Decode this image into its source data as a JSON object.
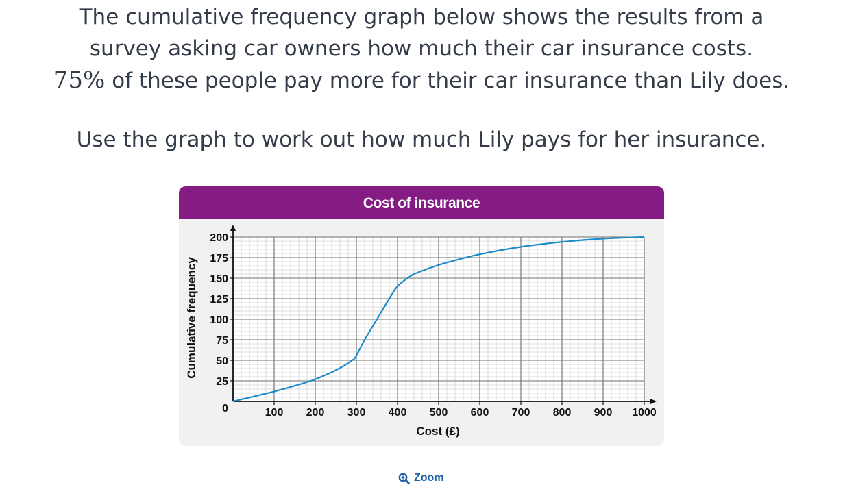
{
  "question": {
    "line1": "The cumulative frequency graph below shows the results from a",
    "line2": "survey asking car owners how much their car insurance costs.",
    "line3_pct": "75%",
    "line3_rest": " of these people pay more for their car insurance than Lily does.",
    "instruction": "Use the graph to work out how much Lily pays for her insurance."
  },
  "zoom_label": "Zoom",
  "colors": {
    "header": "#841c84",
    "curve": "#1a8bc9",
    "card": "#f1f1f1"
  },
  "chart_data": {
    "type": "line",
    "title": "Cost of insurance",
    "xlabel": "Cost (£)",
    "ylabel": "Cumulative frequency",
    "xlim": [
      0,
      1000
    ],
    "ylim": [
      0,
      200
    ],
    "x_ticks": [
      100,
      200,
      300,
      400,
      500,
      600,
      700,
      800,
      900,
      1000
    ],
    "y_ticks": [
      25,
      50,
      75,
      100,
      125,
      150,
      175,
      200
    ],
    "origin_label": "0",
    "grid": true,
    "series": [
      {
        "values_x": [
          0,
          50,
          100,
          150,
          200,
          250,
          290,
          300,
          320,
          350,
          380,
          400,
          430,
          450,
          500,
          550,
          600,
          700,
          800,
          900,
          1000
        ],
        "values_y": [
          0,
          6,
          12,
          19,
          27,
          38,
          50,
          56,
          75,
          100,
          125,
          140,
          152,
          157,
          166,
          173,
          179,
          188,
          194,
          198,
          200
        ]
      }
    ]
  }
}
